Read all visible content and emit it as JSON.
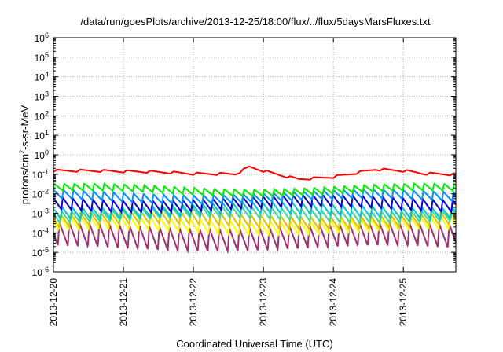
{
  "chart_data": {
    "type": "line",
    "title": "/data/run/goesPlots/archive/2013-12-25/18:00/flux/../flux/5daysMarsFluxes.txt",
    "xlabel": "Coordinated Universal Time (UTC)",
    "ylabel_main": "protons/cm",
    "ylabel_sup": "2",
    "ylabel_rest": "-s-sr-MeV",
    "y_scale": "log",
    "ylim": [
      1e-06,
      1000000.0
    ],
    "y_ticks": [
      {
        "base": "10",
        "exp": "6",
        "value": 1000000.0
      },
      {
        "base": "10",
        "exp": "5",
        "value": 100000.0
      },
      {
        "base": "10",
        "exp": "4",
        "value": 10000.0
      },
      {
        "base": "10",
        "exp": "3",
        "value": 1000.0
      },
      {
        "base": "10",
        "exp": "2",
        "value": 100.0
      },
      {
        "base": "10",
        "exp": "1",
        "value": 10.0
      },
      {
        "base": "10",
        "exp": "0",
        "value": 1
      },
      {
        "base": "10",
        "exp": "-1",
        "value": 0.1
      },
      {
        "base": "10",
        "exp": "-2",
        "value": 0.01
      },
      {
        "base": "10",
        "exp": "-3",
        "value": 0.001
      },
      {
        "base": "10",
        "exp": "-4",
        "value": 0.0001
      },
      {
        "base": "10",
        "exp": "-5",
        "value": 1e-05
      },
      {
        "base": "10",
        "exp": "-6",
        "value": 1e-06
      }
    ],
    "xlim": [
      "2013-12-20",
      "2013-12-25T18:00"
    ],
    "x_ticks": [
      "2013-12-20",
      "2013-12-21",
      "2013-12-22",
      "2013-12-23",
      "2013-12-24",
      "2013-12-25"
    ],
    "grid": true,
    "series": [
      {
        "color": "#ff0000",
        "base_log": -0.9,
        "amplitude": 0.12,
        "teeth_per_day": 3,
        "baseline_log": [
          [
            0,
            -0.82
          ],
          [
            1,
            -1.0
          ],
          [
            2,
            -1.05
          ],
          [
            2.6,
            -0.95
          ],
          [
            2.8,
            -0.55
          ],
          [
            3.1,
            -0.8
          ],
          [
            3.5,
            -1.1
          ],
          [
            4.0,
            -1.0
          ],
          [
            4.6,
            -0.7
          ],
          [
            5.0,
            -0.85
          ],
          [
            5.3,
            -1.05
          ],
          [
            5.75,
            -1.15
          ]
        ]
      },
      {
        "color": "#00ee00",
        "base_log": -1.8,
        "amplitude": 0.35
      },
      {
        "color": "#0090ff",
        "base_log": -2.15,
        "amplitude": 0.45
      },
      {
        "color": "#0000d0",
        "base_log": -2.5,
        "amplitude": 0.6
      },
      {
        "color": "#00c8c8",
        "base_log": -2.85,
        "amplitude": 0.6
      },
      {
        "color": "#40d890",
        "base_log": -3.05,
        "amplitude": 0.6
      },
      {
        "color": "#e0c000",
        "base_log": -3.35,
        "amplitude": 0.65
      },
      {
        "color": "#ffff00",
        "base_log": -3.6,
        "amplitude": 0.7
      },
      {
        "color": "#a03070",
        "base_log": -4.2,
        "amplitude": 1.2
      }
    ],
    "teeth_per_day_default": 7
  }
}
